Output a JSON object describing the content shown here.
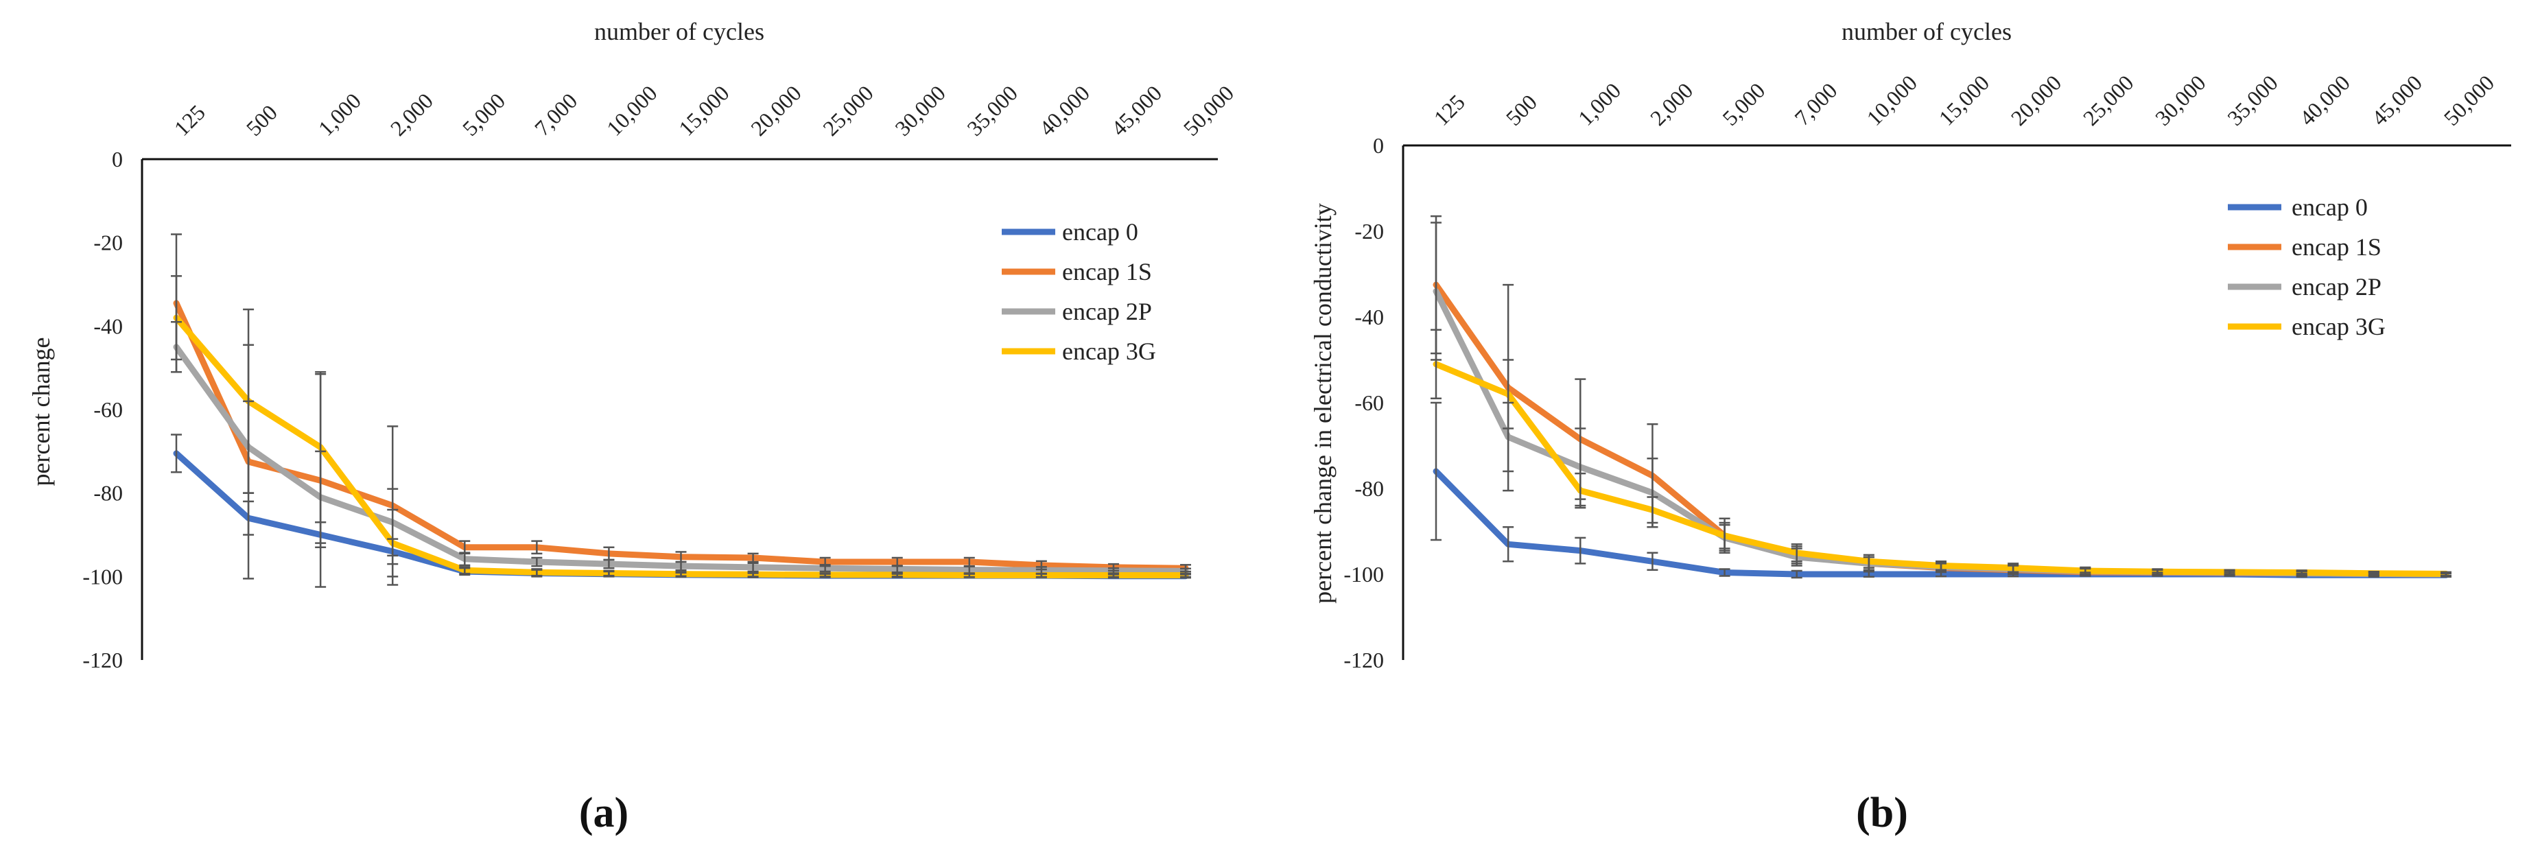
{
  "chart_data": [
    {
      "type": "line",
      "panel": "(a)",
      "xlabel": "number of cycles",
      "ylabel": "percent change",
      "categories": [
        "125",
        "500",
        "1,000",
        "2,000",
        "5,000",
        "7,000",
        "10,000",
        "15,000",
        "20,000",
        "25,000",
        "30,000",
        "35,000",
        "40,000",
        "45,000",
        "50,000"
      ],
      "y_ticks": [
        "0",
        "-20",
        "-40",
        "-60",
        "-80",
        "-100",
        "-120"
      ],
      "ylim": [
        -120,
        0
      ],
      "grid": false,
      "legend_position": "right",
      "series": [
        {
          "name": "encap 0",
          "color": "#4472C4",
          "values": [
            -70.5,
            -86,
            -90,
            -94,
            -98.8,
            -99.2,
            -99.4,
            -99.6,
            -99.7,
            -99.8,
            -99.8,
            -99.8,
            -99.8,
            -99.9,
            -99.9
          ],
          "err": [
            4.5,
            4,
            3,
            3,
            0.8,
            0.8,
            0.6,
            0.5,
            0.5,
            0.4,
            0.4,
            0.4,
            0.4,
            0.4,
            0.4
          ]
        },
        {
          "name": "encap 1S",
          "color": "#ED7D31",
          "values": [
            -34.5,
            -72.5,
            -77,
            -83,
            -93,
            -93,
            -94.5,
            -95.3,
            -95.5,
            -96.5,
            -96.5,
            -96.5,
            -97.3,
            -97.8,
            -98
          ],
          "err": [
            16.5,
            28,
            25.5,
            19,
            1.5,
            1.5,
            1.5,
            1.2,
            1,
            1,
            1,
            1,
            1,
            0.8,
            0.8
          ]
        },
        {
          "name": "encap 2P",
          "color": "#A5A5A5",
          "values": [
            -45,
            -69,
            -81,
            -87,
            -95.8,
            -96.5,
            -97,
            -97.5,
            -97.8,
            -98,
            -98.2,
            -98.4,
            -98.5,
            -98.6,
            -98.7
          ],
          "err": [
            6,
            11,
            11,
            8,
            1.5,
            1,
            1,
            1,
            1,
            0.8,
            0.8,
            0.8,
            0.8,
            0.6,
            0.6
          ]
        },
        {
          "name": "encap 3G",
          "color": "#FFC000",
          "values": [
            -38,
            -58,
            -69,
            -92,
            -98.5,
            -99,
            -99.2,
            -99.4,
            -99.5,
            -99.6,
            -99.6,
            -99.7,
            -99.7,
            -99.7,
            -99.7
          ],
          "err": [
            10,
            22,
            18,
            8,
            0.8,
            0.8,
            0.6,
            0.5,
            0.5,
            0.4,
            0.4,
            0.4,
            0.4,
            0.4,
            0.4
          ]
        }
      ]
    },
    {
      "type": "line",
      "panel": "(b)",
      "xlabel": "number of cycles",
      "ylabel": "percent change in electrical conductivity",
      "categories": [
        "125",
        "500",
        "1,000",
        "2,000",
        "5,000",
        "7,000",
        "10,000",
        "15,000",
        "20,000",
        "25,000",
        "30,000",
        "35,000",
        "40,000",
        "45,000",
        "50,000"
      ],
      "y_ticks": [
        "0",
        "-20",
        "-40",
        "-60",
        "-80",
        "-100",
        "-120"
      ],
      "ylim": [
        -120,
        0
      ],
      "grid": false,
      "legend_position": "right",
      "series": [
        {
          "name": "encap 0",
          "color": "#4472C4",
          "values": [
            -76,
            -93,
            -94.5,
            -97,
            -99.6,
            -100,
            -100,
            -100,
            -100,
            -100,
            -100,
            -100,
            -100.2,
            -100.2,
            -100.2
          ],
          "err": [
            16,
            4,
            3,
            2,
            0.8,
            0.8,
            0.6,
            0.5,
            0.5,
            0.4,
            0.4,
            0.4,
            0.4,
            0.4,
            0.4
          ]
        },
        {
          "name": "encap 1S",
          "color": "#ED7D31",
          "values": [
            -32.5,
            -56.5,
            -68.5,
            -77,
            -91,
            -95.5,
            -97.5,
            -98.5,
            -99,
            -99.5,
            -99.6,
            -99.7,
            -99.8,
            -99.9,
            -100
          ],
          "err": [
            16,
            24,
            14,
            12,
            4,
            2,
            1.5,
            1,
            1,
            0.8,
            0.6,
            0.5,
            0.5,
            0.4,
            0.4
          ]
        },
        {
          "name": "encap 2P",
          "color": "#A5A5A5",
          "values": [
            -34,
            -68,
            -75,
            -81,
            -91.5,
            -96,
            -97.5,
            -98.3,
            -98.8,
            -99.3,
            -99.5,
            -99.6,
            -99.8,
            -99.9,
            -100
          ],
          "err": [
            16,
            8,
            9,
            8,
            3,
            2,
            1.5,
            1,
            1,
            0.8,
            0.6,
            0.5,
            0.5,
            0.4,
            0.4
          ]
        },
        {
          "name": "encap 3G",
          "color": "#FFC000",
          "values": [
            -51,
            -58,
            -80.5,
            -85,
            -91,
            -95,
            -97,
            -98,
            -98.5,
            -99.2,
            -99.4,
            -99.5,
            -99.6,
            -99.8,
            -99.9
          ],
          "err": [
            8,
            8,
            4,
            3,
            3,
            2,
            1.5,
            1,
            1,
            0.8,
            0.6,
            0.5,
            0.5,
            0.4,
            0.4
          ]
        }
      ]
    }
  ]
}
